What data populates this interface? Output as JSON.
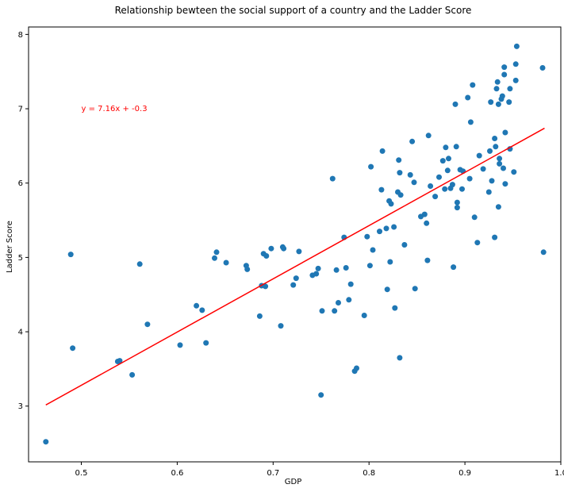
{
  "chart_data": {
    "type": "scatter",
    "title": "Relationship bewteen the social support of a country and the Ladder Score",
    "xlabel": "GDP",
    "ylabel": "Ladder Score",
    "xlim": [
      0.445,
      1.0
    ],
    "ylim": [
      2.25,
      8.1
    ],
    "xticks": [
      0.5,
      0.6,
      0.7,
      0.8,
      0.9,
      1.0
    ],
    "xtick_labels": [
      "0.5",
      "0.6",
      "0.7",
      "0.8",
      "0.9",
      "1.0"
    ],
    "yticks": [
      3,
      4,
      5,
      6,
      7,
      8
    ],
    "ytick_labels": [
      "3",
      "4",
      "5",
      "6",
      "7",
      "8"
    ],
    "grid": false,
    "point_color": "#1f77b4",
    "line_color": "#ff0000",
    "annotation": {
      "text": "y = 7.16x + -0.3",
      "x": 0.5,
      "y": 7.0
    },
    "regression": {
      "slope": 7.16,
      "intercept": -0.3,
      "x_range": [
        0.463,
        0.983
      ]
    },
    "points": [
      [
        0.463,
        2.52
      ],
      [
        0.489,
        5.04
      ],
      [
        0.491,
        3.78
      ],
      [
        0.538,
        3.6
      ],
      [
        0.54,
        3.61
      ],
      [
        0.553,
        3.42
      ],
      [
        0.561,
        4.91
      ],
      [
        0.569,
        4.1
      ],
      [
        0.603,
        3.82
      ],
      [
        0.62,
        4.35
      ],
      [
        0.626,
        4.29
      ],
      [
        0.63,
        3.85
      ],
      [
        0.639,
        4.99
      ],
      [
        0.641,
        5.07
      ],
      [
        0.651,
        4.93
      ],
      [
        0.672,
        4.89
      ],
      [
        0.673,
        4.84
      ],
      [
        0.686,
        4.21
      ],
      [
        0.688,
        4.62
      ],
      [
        0.69,
        5.05
      ],
      [
        0.692,
        4.61
      ],
      [
        0.693,
        5.02
      ],
      [
        0.698,
        5.12
      ],
      [
        0.708,
        4.08
      ],
      [
        0.71,
        5.14
      ],
      [
        0.711,
        5.12
      ],
      [
        0.721,
        4.63
      ],
      [
        0.724,
        4.72
      ],
      [
        0.727,
        5.08
      ],
      [
        0.741,
        4.76
      ],
      [
        0.745,
        4.78
      ],
      [
        0.747,
        4.85
      ],
      [
        0.75,
        3.15
      ],
      [
        0.751,
        4.28
      ],
      [
        0.762,
        6.06
      ],
      [
        0.764,
        4.28
      ],
      [
        0.766,
        4.83
      ],
      [
        0.768,
        4.39
      ],
      [
        0.774,
        5.27
      ],
      [
        0.776,
        4.86
      ],
      [
        0.779,
        4.43
      ],
      [
        0.781,
        4.64
      ],
      [
        0.785,
        3.47
      ],
      [
        0.787,
        3.51
      ],
      [
        0.795,
        4.22
      ],
      [
        0.798,
        5.28
      ],
      [
        0.801,
        4.89
      ],
      [
        0.802,
        6.22
      ],
      [
        0.804,
        5.1
      ],
      [
        0.811,
        5.35
      ],
      [
        0.813,
        5.91
      ],
      [
        0.814,
        6.43
      ],
      [
        0.818,
        5.39
      ],
      [
        0.819,
        4.57
      ],
      [
        0.821,
        5.76
      ],
      [
        0.822,
        4.94
      ],
      [
        0.823,
        5.72
      ],
      [
        0.826,
        5.41
      ],
      [
        0.827,
        4.32
      ],
      [
        0.83,
        5.88
      ],
      [
        0.831,
        6.31
      ],
      [
        0.832,
        6.14
      ],
      [
        0.832,
        3.65
      ],
      [
        0.833,
        5.84
      ],
      [
        0.837,
        5.17
      ],
      [
        0.843,
        6.11
      ],
      [
        0.845,
        6.56
      ],
      [
        0.847,
        6.01
      ],
      [
        0.848,
        4.58
      ],
      [
        0.854,
        5.55
      ],
      [
        0.858,
        5.58
      ],
      [
        0.86,
        5.46
      ],
      [
        0.861,
        4.96
      ],
      [
        0.862,
        6.64
      ],
      [
        0.864,
        5.96
      ],
      [
        0.869,
        5.82
      ],
      [
        0.873,
        6.08
      ],
      [
        0.877,
        6.3
      ],
      [
        0.879,
        5.92
      ],
      [
        0.88,
        6.48
      ],
      [
        0.882,
        6.17
      ],
      [
        0.883,
        6.33
      ],
      [
        0.885,
        5.93
      ],
      [
        0.887,
        5.98
      ],
      [
        0.888,
        4.87
      ],
      [
        0.89,
        7.06
      ],
      [
        0.891,
        6.49
      ],
      [
        0.892,
        5.67
      ],
      [
        0.892,
        5.74
      ],
      [
        0.895,
        6.18
      ],
      [
        0.897,
        5.92
      ],
      [
        0.898,
        6.16
      ],
      [
        0.903,
        7.15
      ],
      [
        0.905,
        6.06
      ],
      [
        0.906,
        6.82
      ],
      [
        0.908,
        7.32
      ],
      [
        0.91,
        5.54
      ],
      [
        0.913,
        5.2
      ],
      [
        0.915,
        6.37
      ],
      [
        0.919,
        6.19
      ],
      [
        0.925,
        5.88
      ],
      [
        0.926,
        6.43
      ],
      [
        0.927,
        7.09
      ],
      [
        0.928,
        6.03
      ],
      [
        0.931,
        6.6
      ],
      [
        0.931,
        5.27
      ],
      [
        0.932,
        6.49
      ],
      [
        0.933,
        7.27
      ],
      [
        0.934,
        7.36
      ],
      [
        0.935,
        7.06
      ],
      [
        0.935,
        5.68
      ],
      [
        0.936,
        6.26
      ],
      [
        0.936,
        6.33
      ],
      [
        0.938,
        7.13
      ],
      [
        0.939,
        7.17
      ],
      [
        0.94,
        6.2
      ],
      [
        0.941,
        7.46
      ],
      [
        0.941,
        7.56
      ],
      [
        0.942,
        6.68
      ],
      [
        0.942,
        5.99
      ],
      [
        0.946,
        7.09
      ],
      [
        0.947,
        7.27
      ],
      [
        0.947,
        6.46
      ],
      [
        0.951,
        6.15
      ],
      [
        0.953,
        7.38
      ],
      [
        0.953,
        7.6
      ],
      [
        0.954,
        7.84
      ],
      [
        0.981,
        7.55
      ],
      [
        0.982,
        5.07
      ]
    ]
  }
}
